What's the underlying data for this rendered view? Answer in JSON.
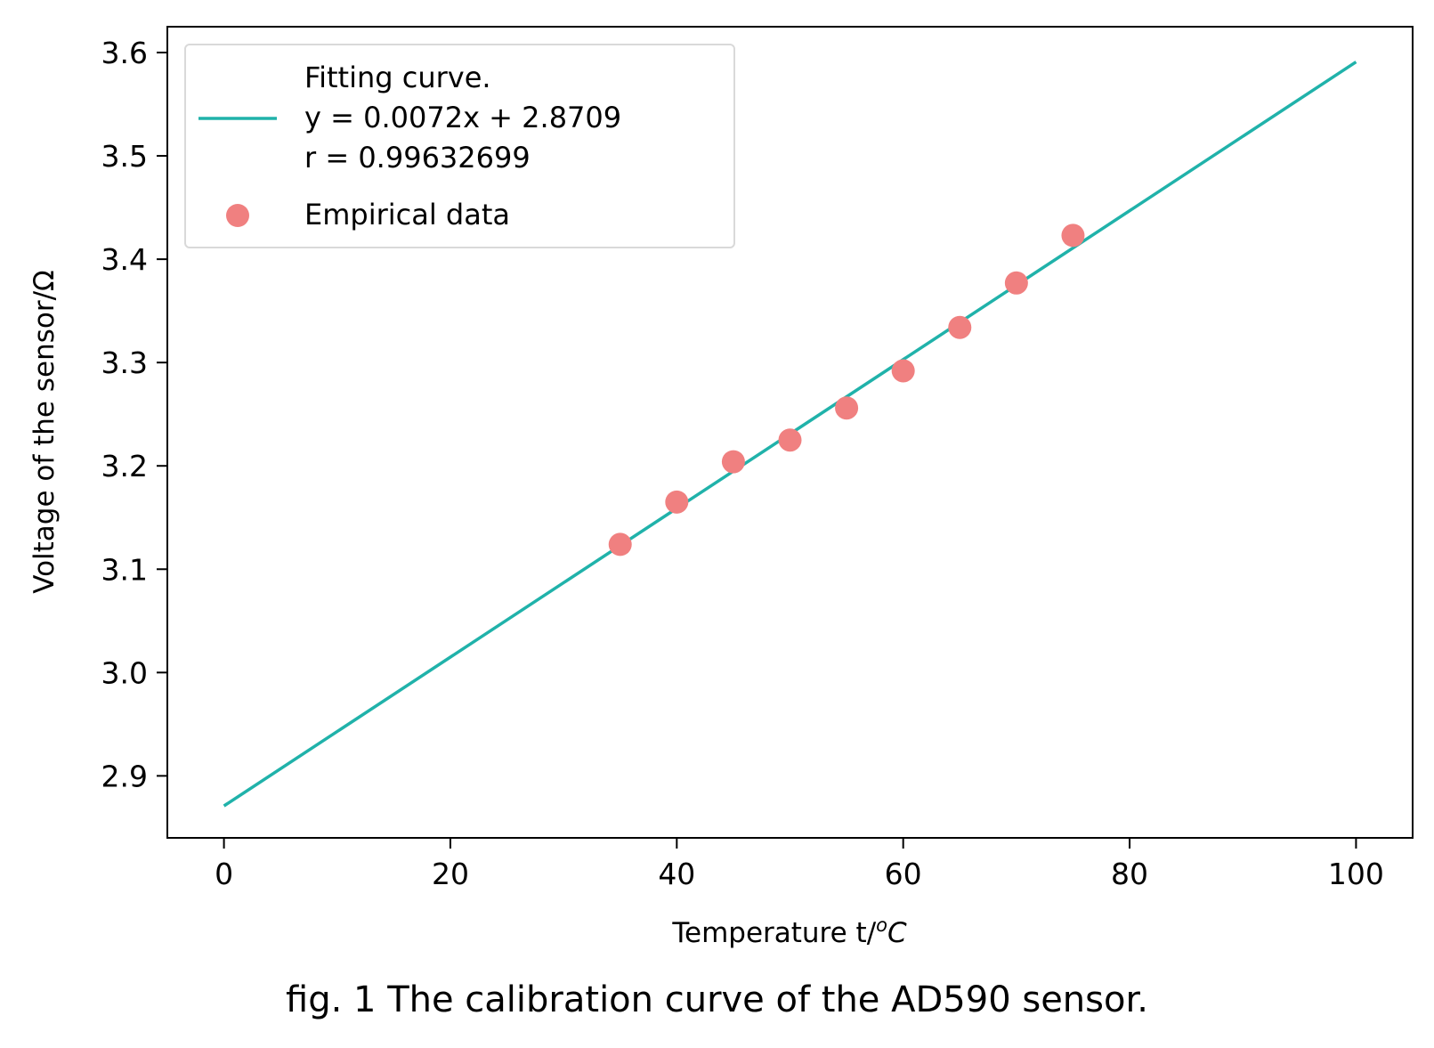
{
  "chart_data": {
    "type": "scatter",
    "xlabel_text": "Temperature t/",
    "xlabel_unit": "C",
    "xlabel_sup": "o",
    "ylabel": "Voltage of the sensor/Ω",
    "xlim": [
      -5,
      105
    ],
    "ylim": [
      2.84,
      3.625
    ],
    "xticks": [
      0,
      20,
      40,
      60,
      80,
      100
    ],
    "xtick_labels": [
      "0",
      "20",
      "40",
      "60",
      "80",
      "100"
    ],
    "yticks": [
      2.9,
      3.0,
      3.1,
      3.2,
      3.3,
      3.4,
      3.5,
      3.6
    ],
    "ytick_labels": [
      "2.9",
      "3.0",
      "3.1",
      "3.2",
      "3.3",
      "3.4",
      "3.5",
      "3.6"
    ],
    "grid": false,
    "legend_position": "upper-left",
    "series": [
      {
        "kind": "line",
        "legend_lines": [
          "Fitting curve.",
          "y = 0.0072x + 2.8709",
          "r = 0.99632699"
        ],
        "color": "#20b2aa",
        "x": [
          0,
          100
        ],
        "y": [
          2.8709,
          3.5909
        ]
      },
      {
        "kind": "scatter",
        "name": "Empirical data",
        "color": "#f08080",
        "x": [
          35,
          40,
          45,
          50,
          55,
          60,
          65,
          70,
          75
        ],
        "y": [
          3.124,
          3.165,
          3.204,
          3.225,
          3.256,
          3.292,
          3.334,
          3.377,
          3.423
        ]
      }
    ]
  },
  "caption": "fig. 1 The calibration curve of the AD590 sensor."
}
